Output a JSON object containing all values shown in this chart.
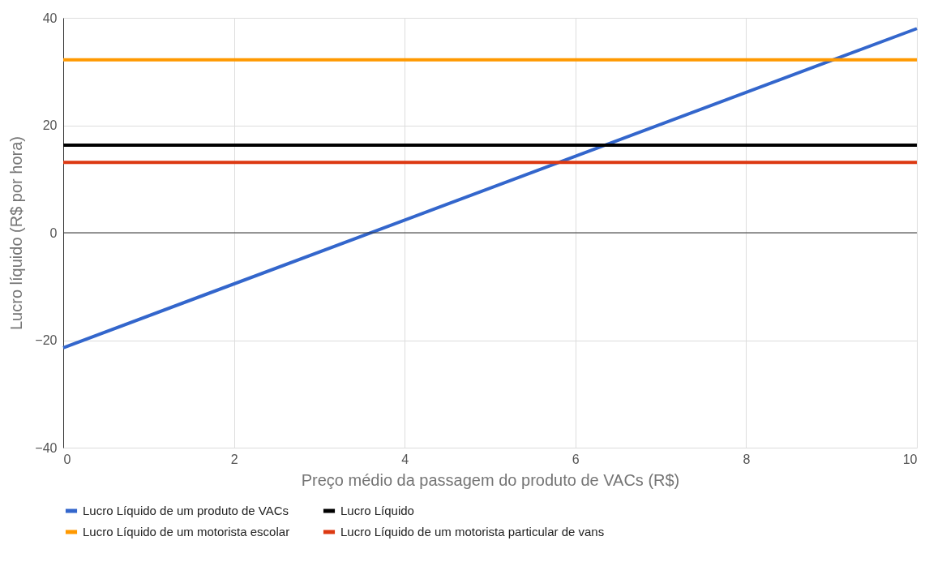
{
  "chart_data": {
    "type": "line",
    "xlabel": "Preço médio da passagem do produto de VACs (R$)",
    "ylabel": "Lucro líquido (R$ por hora)",
    "x": [
      0,
      10
    ],
    "xlim": [
      0,
      10
    ],
    "xticks": [
      0,
      2,
      4,
      6,
      8,
      10
    ],
    "ylim": [
      -40,
      40
    ],
    "yticks": [
      -40,
      -20,
      0,
      20,
      40
    ],
    "grid": true,
    "legend": "bottom",
    "ref_lines": [
      {
        "axis": "y",
        "value": 0,
        "color": "#333333"
      }
    ],
    "series": [
      {
        "name": "Lucro Líquido de um produto de VACs",
        "color": "#3366cc",
        "values": [
          -21.4,
          38.0
        ]
      },
      {
        "name": "Lucro Líquido",
        "color": "#000000",
        "values": [
          16.3,
          16.3
        ]
      },
      {
        "name": "Lucro Líquido de um motorista escolar",
        "color": "#ff9900",
        "values": [
          32.2,
          32.2
        ]
      },
      {
        "name": "Lucro Líquido de um motorista particular de vans",
        "color": "#dc3912",
        "values": [
          13.1,
          13.1
        ]
      }
    ]
  }
}
